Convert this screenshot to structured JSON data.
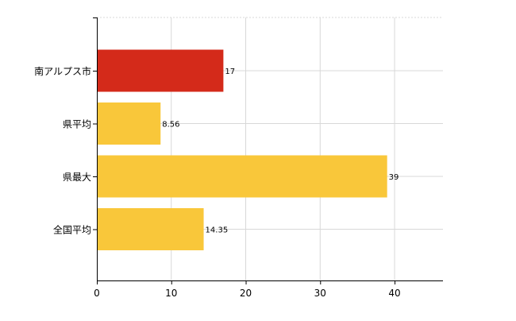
{
  "chart_data": {
    "type": "bar",
    "orientation": "horizontal",
    "categories": [
      "南アルプス市",
      "県平均",
      "県最大",
      "全国平均"
    ],
    "values": [
      17,
      8.56,
      39,
      14.35
    ],
    "value_labels": [
      "17",
      "8.56",
      "39",
      "14.35"
    ],
    "bar_colors": [
      "#d42a1a",
      "#f9c73a",
      "#f9c73a",
      "#f9c73a"
    ],
    "xlim": [
      0,
      46.5
    ],
    "xticks": [
      0,
      10,
      20,
      30,
      40
    ],
    "grid": true,
    "title": "",
    "xlabel": "",
    "ylabel": ""
  },
  "colors": {
    "highlight": "#d42a1a",
    "bar": "#f9c73a",
    "grid": "#d8d8d8",
    "axis": "#000000"
  }
}
